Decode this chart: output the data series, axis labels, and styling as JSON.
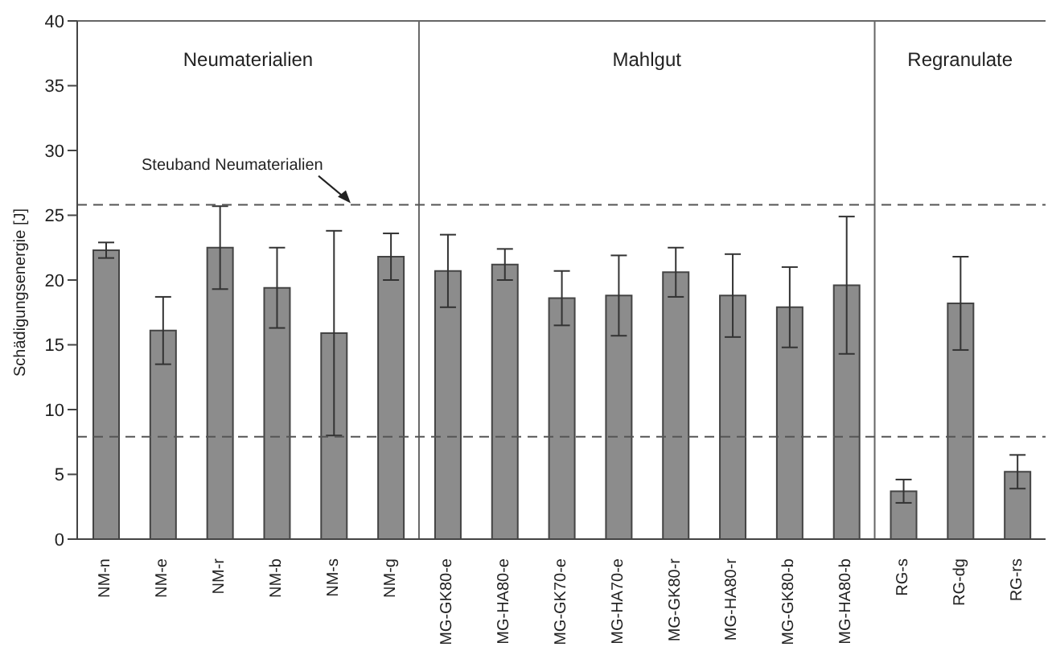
{
  "chart_data": {
    "type": "bar",
    "ylabel": "Schädigungsenergie  [J]",
    "categories": [
      "NM-n",
      "NM-e",
      "NM-r",
      "NM-b",
      "NM-s",
      "NM-g",
      "MG-GK80-e",
      "MG-HA80-e",
      "MG-GK70-e",
      "MG-HA70-e",
      "MG-GK80-r",
      "MG-HA80-r",
      "MG-GK80-b",
      "MG-HA80-b",
      "RG-s",
      "RG-dg",
      "RG-rs"
    ],
    "values": [
      22.3,
      16.1,
      22.5,
      19.4,
      15.9,
      21.8,
      20.7,
      21.2,
      18.6,
      18.8,
      20.6,
      18.8,
      17.9,
      19.6,
      3.7,
      18.2,
      5.2
    ],
    "errors": [
      0.6,
      2.6,
      3.2,
      3.1,
      7.9,
      1.8,
      2.8,
      1.2,
      2.1,
      3.1,
      1.9,
      3.2,
      3.1,
      5.3,
      0.9,
      3.6,
      1.3
    ],
    "color": "#8c8c8c",
    "ylim": [
      0,
      40
    ],
    "yticks": [
      0,
      5,
      10,
      15,
      20,
      25,
      30,
      35,
      40
    ],
    "ref_lines": [
      {
        "axis": "y",
        "value": 25.8,
        "label": "Steuband Neumaterialien",
        "line_style": "dashed",
        "color": "#555555"
      },
      {
        "axis": "y",
        "value": 7.9,
        "line_style": "dashed",
        "color": "#555555"
      }
    ],
    "annotations": [
      "Neumaterialien",
      "Mahlgut",
      "Regranulate"
    ],
    "grid": false,
    "legend": false
  }
}
